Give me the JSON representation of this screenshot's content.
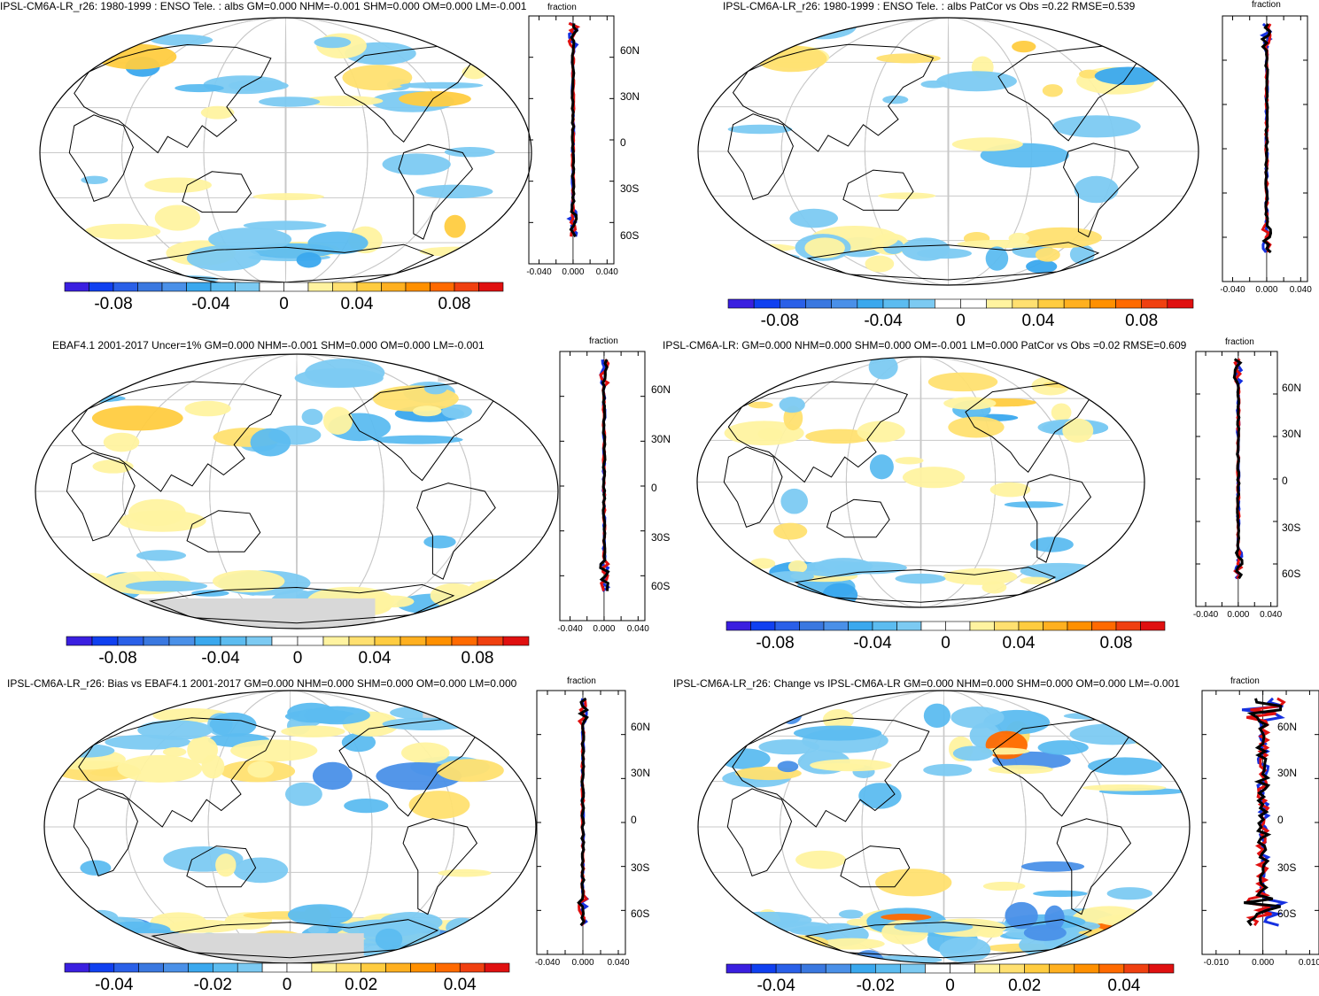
{
  "colors": {
    "palette": [
      "#3a1fe0",
      "#1040f0",
      "#2a60e8",
      "#3a78e0",
      "#4a90e8",
      "#3aa8ee",
      "#5cbcf0",
      "#7ccaf2",
      "#ffffff",
      "#ffffff",
      "#fff3a0",
      "#ffe070",
      "#ffcc40",
      "#ffb020",
      "#ff9000",
      "#ff6a00",
      "#f04010",
      "#e01010"
    ],
    "land_outline": "#000000",
    "missing": "#d8d8d8",
    "grid": "#c8c8c8",
    "model_line": "#e01010",
    "obs_line": "#1530e0",
    "diff_line": "#000000"
  },
  "chart_data": [
    {
      "type": "heatmap",
      "title": "IPSL-CM6A-LR_r26: 1980-1999 : ENSO Tele. : albs GM=0.000 NHM=-0.001 SHM=0.000 OM=0.000 LM=-0.001",
      "colorbar_ticks": [
        "-0.08",
        "-0.04",
        "0",
        "0.04",
        "0.08"
      ],
      "profile_label": "fraction",
      "profile_y_ticks": [
        "60N",
        "30N",
        "0",
        "30S",
        "60S"
      ],
      "profile_x_ticks": [
        "-0.040",
        "0.000",
        "0.040"
      ]
    },
    {
      "type": "heatmap",
      "title": "IPSL-CM6A-LR_r26: 1980-1999 : ENSO Tele. : albs PatCor vs Obs =0.22 RMSE=0.539",
      "colorbar_ticks": [
        "-0.08",
        "-0.04",
        "0",
        "0.04",
        "0.08"
      ],
      "profile_label": "fraction",
      "profile_y_ticks": [],
      "profile_x_ticks": [
        "-0.040",
        "0.000",
        "0.040"
      ]
    },
    {
      "type": "heatmap",
      "title": "EBAF4.1 2001-2017 Uncer=1% GM=0.000 NHM=-0.001 SHM=0.000 OM=0.000 LM=-0.001",
      "colorbar_ticks": [
        "-0.08",
        "-0.04",
        "0",
        "0.04",
        "0.08"
      ],
      "profile_label": "fraction",
      "profile_y_ticks": [
        "60N",
        "30N",
        "0",
        "30S",
        "60S"
      ],
      "profile_x_ticks": [
        "-0.040",
        "0.000",
        "0.040"
      ]
    },
    {
      "type": "heatmap",
      "title": "IPSL-CM6A-LR: GM=0.000 NHM=0.000 SHM=0.000 OM=-0.001 LM=0.000 PatCor vs Obs =0.02 RMSE=0.609",
      "colorbar_ticks": [
        "-0.08",
        "-0.04",
        "0",
        "0.04",
        "0.08"
      ],
      "profile_label": "fraction",
      "profile_y_ticks": [
        "60N",
        "30N",
        "0",
        "30S",
        "60S"
      ],
      "profile_x_ticks": [
        "-0.040",
        "0.000",
        "0.040"
      ]
    },
    {
      "type": "heatmap",
      "title": "IPSL-CM6A-LR_r26: Bias vs EBAF4.1 2001-2017 GM=0.000 NHM=0.000 SHM=0.000 OM=0.000 LM=0.000",
      "colorbar_ticks": [
        "-0.04",
        "-0.02",
        "0",
        "0.02",
        "0.04"
      ],
      "profile_label": "fraction",
      "profile_y_ticks": [
        "60N",
        "30N",
        "0",
        "30S",
        "60S"
      ],
      "profile_x_ticks": [
        "-0.040",
        "0.000",
        "0.040"
      ]
    },
    {
      "type": "heatmap",
      "title": "IPSL-CM6A-LR_r26: Change vs IPSL-CM6A-LR GM=0.000 NHM=0.000 SHM=0.000 OM=0.000 LM=-0.001",
      "colorbar_ticks": [
        "-0.04",
        "-0.02",
        "0",
        "0.02",
        "0.04"
      ],
      "profile_label": "fraction",
      "profile_y_ticks": [
        "60N",
        "30N",
        "0",
        "30S",
        "60S"
      ],
      "profile_x_ticks": [
        "-0.010",
        "0.000",
        "0.010"
      ]
    }
  ]
}
